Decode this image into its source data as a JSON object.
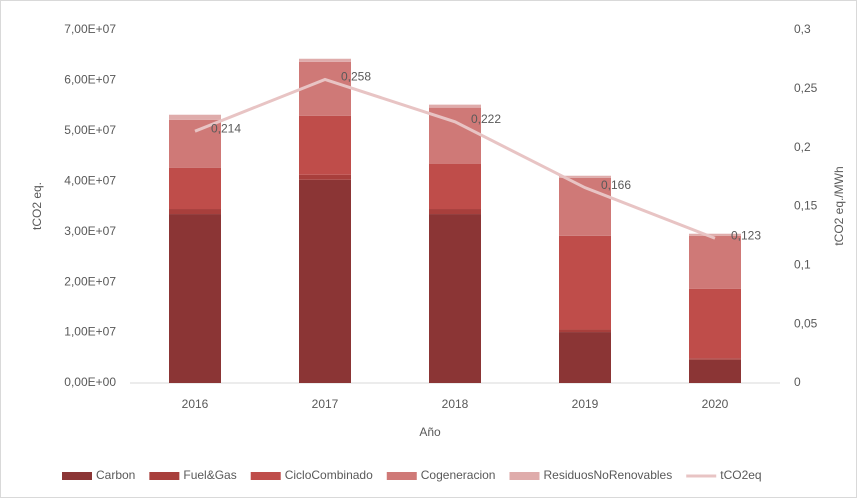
{
  "chart_data": {
    "type": "bar",
    "stacked": true,
    "categories": [
      "2016",
      "2017",
      "2018",
      "2019",
      "2020"
    ],
    "xlabel": "Año",
    "ylabel": "tCO2 eq.",
    "y2label": "tCO2 eq./MWh",
    "ylim": [
      0,
      70000000
    ],
    "yticks": [
      {
        "value": 0,
        "label": "0,00E+00"
      },
      {
        "value": 10000000,
        "label": "1,00E+07"
      },
      {
        "value": 20000000,
        "label": "2,00E+07"
      },
      {
        "value": 30000000,
        "label": "3,00E+07"
      },
      {
        "value": 40000000,
        "label": "4,00E+07"
      },
      {
        "value": 50000000,
        "label": "5,00E+07"
      },
      {
        "value": 60000000,
        "label": "6,00E+07"
      },
      {
        "value": 70000000,
        "label": "7,00E+07"
      }
    ],
    "y2lim": [
      0,
      0.3
    ],
    "y2ticks": [
      0,
      {
        "value": 0.05,
        "label": "0,05"
      },
      {
        "value": 0.1,
        "label": "0,1"
      },
      {
        "value": 0.15,
        "label": "0,15"
      },
      {
        "value": 0.2,
        "label": "0,2"
      },
      {
        "value": 0.25,
        "label": "0,25"
      },
      {
        "value": 0.3,
        "label": "0,3"
      }
    ],
    "legend": "bottom",
    "series": [
      {
        "name": "Carbon",
        "color": "#8b3535",
        "values": [
          33500000,
          40300000,
          33500000,
          10100000,
          4600000
        ]
      },
      {
        "name": "Fuel&Gas",
        "color": "#a83f3c",
        "values": [
          1000000,
          1000000,
          1000000,
          500000,
          300000
        ]
      },
      {
        "name": "CicloCombinado",
        "color": "#bf4d4a",
        "values": [
          8200000,
          11700000,
          9000000,
          18600000,
          13800000
        ]
      },
      {
        "name": "Cogeneracion",
        "color": "#cf7977",
        "values": [
          9500000,
          10700000,
          11100000,
          11500000,
          10500000
        ]
      },
      {
        "name": "ResiduosNoRenovables",
        "color": "#dfacab",
        "values": [
          1000000,
          600000,
          600000,
          400000,
          400000
        ]
      },
      {
        "name": "tCO2eq",
        "color": "#e8c4c4",
        "type": "line",
        "axis": "y2",
        "values": [
          0.214,
          0.258,
          0.222,
          0.166,
          0.123
        ],
        "value_labels": [
          "0,214",
          "0,258",
          "0,222",
          "0,166",
          "0,123"
        ]
      }
    ]
  }
}
